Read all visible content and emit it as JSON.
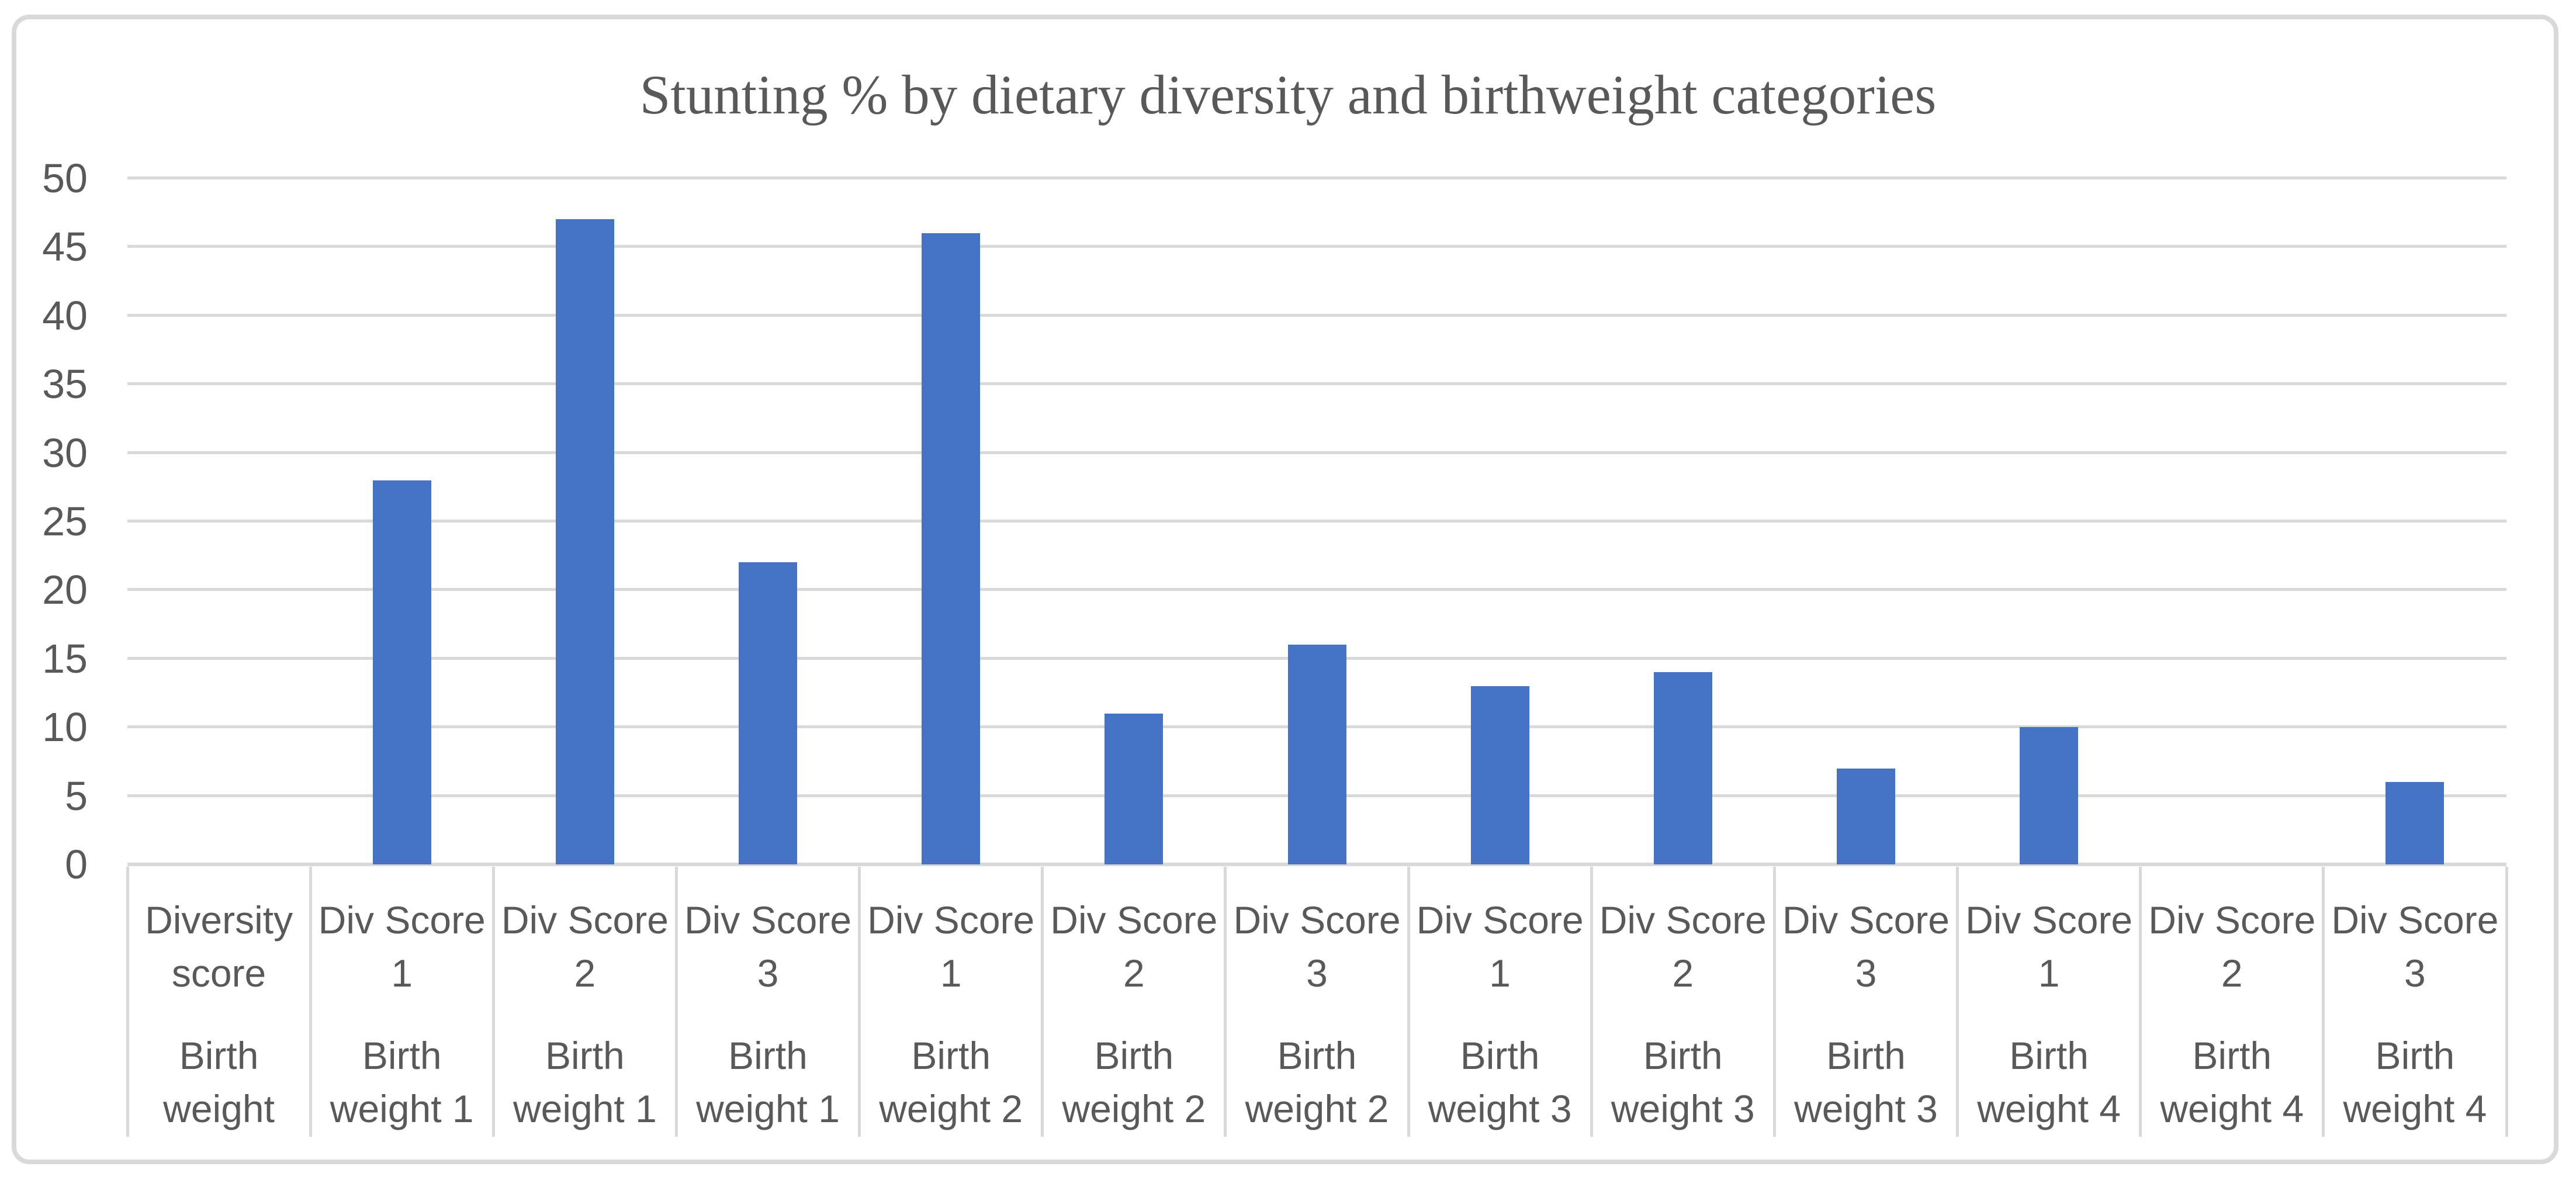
{
  "chart": {
    "colors": {
      "bar": "#4472C4",
      "gridline": "#D9D9D9",
      "border": "#D9D9D9",
      "text": "#595959"
    }
  },
  "chart_data": {
    "type": "bar",
    "title": "Stunting % by dietary diversity and birthweight categories",
    "xlabel": "",
    "ylabel": "",
    "ylim": [
      0,
      50
    ],
    "ytick_step": 5,
    "ytick_labels": [
      "0",
      "5",
      "10",
      "15",
      "20",
      "25",
      "30",
      "35",
      "40",
      "45",
      "50"
    ],
    "grid": "horizontal",
    "legend": "none",
    "bar_color": "#4472C4",
    "categories": [
      {
        "id": "header",
        "diversity_label": "Diversity\nscore",
        "birthweight_label": "Birth\nweight",
        "stunting_pct": null
      },
      {
        "id": "div1-bw1",
        "diversity_label": "Div Score\n1",
        "birthweight_label": "Birth\nweight 1",
        "stunting_pct": 28
      },
      {
        "id": "div2-bw1",
        "diversity_label": "Div Score\n2",
        "birthweight_label": "Birth\nweight 1",
        "stunting_pct": 47
      },
      {
        "id": "div3-bw1",
        "diversity_label": "Div Score\n3",
        "birthweight_label": "Birth\nweight 1",
        "stunting_pct": 22
      },
      {
        "id": "div1-bw2",
        "diversity_label": "Div Score\n1",
        "birthweight_label": "Birth\nweight 2",
        "stunting_pct": 46
      },
      {
        "id": "div2-bw2",
        "diversity_label": "Div Score\n2",
        "birthweight_label": "Birth\nweight 2",
        "stunting_pct": 11
      },
      {
        "id": "div3-bw2",
        "diversity_label": "Div Score\n3",
        "birthweight_label": "Birth\nweight 2",
        "stunting_pct": 16
      },
      {
        "id": "div1-bw3",
        "diversity_label": "Div Score\n1",
        "birthweight_label": "Birth\nweight 3",
        "stunting_pct": 13
      },
      {
        "id": "div2-bw3",
        "diversity_label": "Div Score\n2",
        "birthweight_label": "Birth\nweight 3",
        "stunting_pct": 14
      },
      {
        "id": "div3-bw3",
        "diversity_label": "Div Score\n3",
        "birthweight_label": "Birth\nweight 3",
        "stunting_pct": 7
      },
      {
        "id": "div1-bw4",
        "diversity_label": "Div Score\n1",
        "birthweight_label": "Birth\nweight 4",
        "stunting_pct": 10
      },
      {
        "id": "div2-bw4",
        "diversity_label": "Div Score\n2",
        "birthweight_label": "Birth\nweight 4",
        "stunting_pct": 0
      },
      {
        "id": "div3-bw4",
        "diversity_label": "Div Score\n3",
        "birthweight_label": "Birth\nweight 4",
        "stunting_pct": 6
      }
    ]
  }
}
